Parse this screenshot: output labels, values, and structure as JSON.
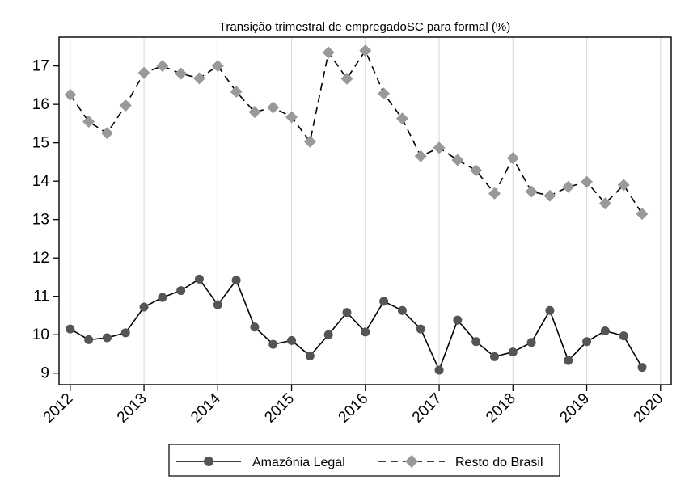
{
  "chart_data": {
    "type": "line",
    "title": "Transição trimestral de empregadoSC para formal (%)",
    "xlabel": "",
    "ylabel": "",
    "xlim": [
      2012,
      2020
    ],
    "ylim": [
      8.7,
      17.75
    ],
    "x_ticks": [
      "2012",
      "2013",
      "2014",
      "2015",
      "2016",
      "2017",
      "2018",
      "2019",
      "2020"
    ],
    "y_ticks": [
      "9",
      "10",
      "11",
      "12",
      "13",
      "14",
      "15",
      "16",
      "17"
    ],
    "grid": "vertical",
    "legend_position": "bottom",
    "x": [
      2012.0,
      2012.25,
      2012.5,
      2012.75,
      2013.0,
      2013.25,
      2013.5,
      2013.75,
      2014.0,
      2014.25,
      2014.5,
      2014.75,
      2015.0,
      2015.25,
      2015.5,
      2015.75,
      2016.0,
      2016.25,
      2016.5,
      2016.75,
      2017.0,
      2017.25,
      2017.5,
      2017.75,
      2018.0,
      2018.25,
      2018.5,
      2018.75,
      2019.0,
      2019.25,
      2019.5,
      2019.75
    ],
    "series": [
      {
        "name": "Amazônia Legal",
        "marker": "circle",
        "line": "solid",
        "color": "#000000",
        "marker_color": "#555555",
        "values": [
          10.15,
          9.87,
          9.92,
          10.05,
          10.72,
          10.97,
          11.15,
          11.45,
          10.78,
          11.42,
          10.2,
          9.75,
          9.85,
          9.45,
          10.0,
          10.58,
          10.07,
          10.87,
          10.63,
          10.15,
          9.08,
          10.38,
          9.82,
          9.43,
          9.55,
          9.8,
          10.63,
          9.33,
          9.82,
          10.1,
          9.97,
          9.15
        ]
      },
      {
        "name": "Resto do Brasil",
        "marker": "diamond",
        "line": "dashed",
        "color": "#000000",
        "marker_color": "#999999",
        "values": [
          16.25,
          15.55,
          15.25,
          15.97,
          16.82,
          17.0,
          16.8,
          16.68,
          17.0,
          16.33,
          15.8,
          15.92,
          15.67,
          15.03,
          17.35,
          16.67,
          17.4,
          16.28,
          15.63,
          14.65,
          14.87,
          14.55,
          14.28,
          13.68,
          14.6,
          13.73,
          13.62,
          13.85,
          13.98,
          13.42,
          13.9,
          13.15
        ]
      }
    ]
  }
}
